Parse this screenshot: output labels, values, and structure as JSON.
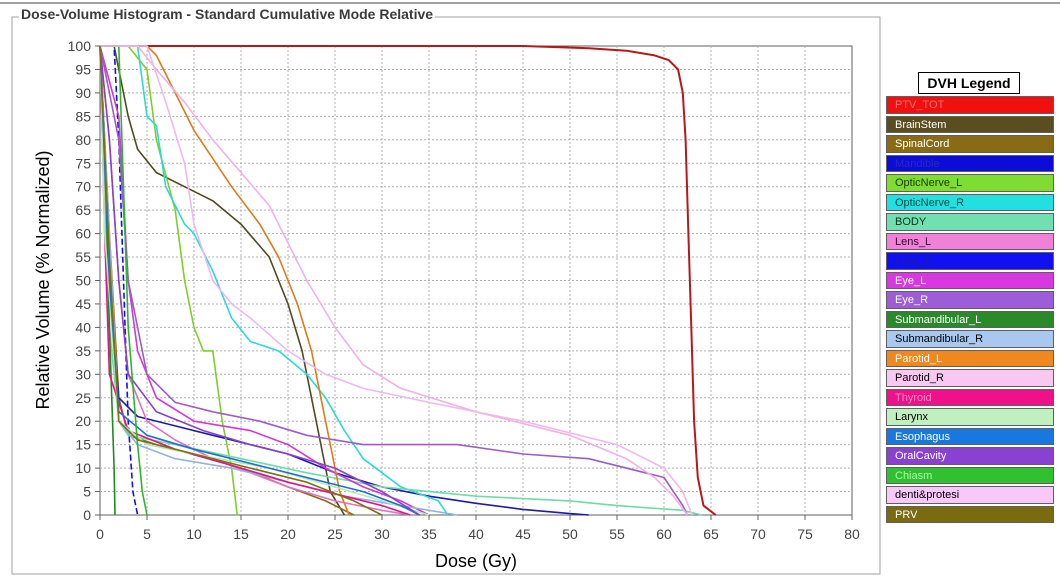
{
  "panel_title": "Dose-Volume Histogram - Standard Cumulative Mode Relative",
  "legend_title": "DVH Legend",
  "chart_data": {
    "type": "line",
    "title": "Dose-Volume Histogram - Standard Cumulative Mode Relative",
    "xlabel": "Dose (Gy)",
    "ylabel": "Relative Volume (% Normalized)",
    "xlim": [
      0,
      80
    ],
    "ylim": [
      0,
      100
    ],
    "xticks": [
      0,
      5,
      10,
      15,
      20,
      25,
      30,
      35,
      40,
      45,
      50,
      55,
      60,
      65,
      70,
      75,
      80
    ],
    "yticks": [
      0,
      5,
      10,
      15,
      20,
      25,
      30,
      35,
      40,
      45,
      50,
      55,
      60,
      65,
      70,
      75,
      80,
      85,
      90,
      95,
      100
    ],
    "grid": true,
    "legend_position": "right",
    "series": [
      {
        "name": "PTV_TOT",
        "color": "#b81818",
        "legend_color": "#f01010",
        "label_color": "#f07070",
        "points": [
          [
            0,
            100
          ],
          [
            30,
            100
          ],
          [
            45,
            100
          ],
          [
            52,
            99.5
          ],
          [
            56,
            99
          ],
          [
            59,
            98
          ],
          [
            60.5,
            97
          ],
          [
            61.5,
            95
          ],
          [
            62,
            90
          ],
          [
            62.3,
            80
          ],
          [
            62.6,
            60
          ],
          [
            62.9,
            40
          ],
          [
            63.2,
            20
          ],
          [
            63.6,
            8
          ],
          [
            64.2,
            2
          ],
          [
            65.5,
            0
          ]
        ]
      },
      {
        "name": "BrainStem",
        "color": "#4f4a20",
        "legend_color": "#5a4e20",
        "label_color": "#ffffff",
        "points": [
          [
            0,
            100
          ],
          [
            1.5,
            100
          ],
          [
            2,
            95
          ],
          [
            3,
            85
          ],
          [
            4,
            78
          ],
          [
            6,
            73
          ],
          [
            9,
            70
          ],
          [
            12,
            67
          ],
          [
            15,
            62
          ],
          [
            18,
            55
          ],
          [
            20,
            45
          ],
          [
            21.5,
            35
          ],
          [
            22.5,
            25
          ],
          [
            23.5,
            15
          ],
          [
            24.5,
            5
          ],
          [
            26,
            0
          ]
        ]
      },
      {
        "name": "SpinalCord",
        "color": "#8a6b15",
        "legend_color": "#8a6b15",
        "label_color": "#ffffff",
        "points": [
          [
            0,
            100
          ],
          [
            1,
            60
          ],
          [
            2,
            25
          ],
          [
            3,
            17
          ],
          [
            6,
            15
          ],
          [
            10,
            13
          ],
          [
            15,
            10
          ],
          [
            20,
            6
          ],
          [
            24,
            3
          ],
          [
            27,
            0
          ]
        ]
      },
      {
        "name": "Mandible",
        "color": "#1c1ca8",
        "legend_color": "#0c0cd8",
        "label_color": "#2a2ac0",
        "points": [
          [
            0,
            100
          ],
          [
            1,
            50
          ],
          [
            2,
            25
          ],
          [
            4,
            21
          ],
          [
            8,
            19
          ],
          [
            12,
            17
          ],
          [
            16,
            15
          ],
          [
            20,
            13
          ],
          [
            25,
            9
          ],
          [
            30,
            6
          ],
          [
            35,
            4
          ],
          [
            40,
            2.5
          ],
          [
            45,
            1.2
          ],
          [
            50,
            0.3
          ],
          [
            52,
            0
          ]
        ]
      },
      {
        "name": "OpticNerve_L",
        "color": "#7ecf2a",
        "legend_color": "#7edd30",
        "label_color": "#1e3a00",
        "points": [
          [
            0,
            100
          ],
          [
            3,
            100
          ],
          [
            5,
            95
          ],
          [
            6,
            80
          ],
          [
            8,
            65
          ],
          [
            9,
            50
          ],
          [
            10,
            40
          ],
          [
            11,
            35
          ],
          [
            12,
            35
          ],
          [
            13,
            20
          ],
          [
            14,
            10
          ],
          [
            14.6,
            0
          ]
        ]
      },
      {
        "name": "OpticNerve_R",
        "color": "#2cd8d8",
        "legend_color": "#22e0e0",
        "label_color": "#004b4b",
        "points": [
          [
            0,
            100
          ],
          [
            4,
            100
          ],
          [
            5,
            85
          ],
          [
            6,
            83
          ],
          [
            7,
            70
          ],
          [
            9,
            62
          ],
          [
            10,
            60
          ],
          [
            12,
            52
          ],
          [
            14,
            42
          ],
          [
            16,
            37
          ],
          [
            19,
            35
          ],
          [
            22,
            30
          ],
          [
            24,
            25
          ],
          [
            26,
            18
          ],
          [
            28,
            12
          ],
          [
            32,
            6
          ],
          [
            36,
            3
          ],
          [
            37,
            0
          ]
        ]
      },
      {
        "name": "BODY",
        "color": "#6edba8",
        "legend_color": "#70e0b0",
        "label_color": "#003020",
        "points": [
          [
            0,
            100
          ],
          [
            0.5,
            70
          ],
          [
            1,
            40
          ],
          [
            2,
            20
          ],
          [
            3,
            17
          ],
          [
            8,
            15
          ],
          [
            15,
            12
          ],
          [
            22,
            9
          ],
          [
            30,
            6
          ],
          [
            40,
            4
          ],
          [
            50,
            3
          ],
          [
            55,
            2
          ],
          [
            62,
            1
          ],
          [
            64,
            0
          ]
        ]
      },
      {
        "name": "Lens_L",
        "color": "#e070c8",
        "legend_color": "#f080d8",
        "label_color": "#3a003a",
        "points": [
          [
            0,
            100
          ],
          [
            1,
            80
          ],
          [
            2,
            50
          ],
          [
            3,
            30
          ],
          [
            5,
            20
          ],
          [
            8,
            16
          ],
          [
            12,
            12
          ],
          [
            16,
            9
          ],
          [
            20,
            6
          ],
          [
            25,
            3
          ],
          [
            30,
            1
          ],
          [
            33,
            0
          ]
        ]
      },
      {
        "name": "Lens_R",
        "color": "#1010e8",
        "legend_color": "#1010f0",
        "label_color": "#1a1ab8",
        "points": [
          [
            0,
            100
          ],
          [
            1.5,
            100
          ],
          [
            2,
            80
          ],
          [
            2.5,
            50
          ],
          [
            3,
            20
          ],
          [
            3.5,
            5
          ],
          [
            4,
            0
          ]
        ]
      },
      {
        "name": "Eye_L",
        "color": "#d038d8",
        "legend_color": "#d838e0",
        "label_color": "#ffffff",
        "points": [
          [
            0,
            100
          ],
          [
            2,
            85
          ],
          [
            3,
            50
          ],
          [
            4,
            35
          ],
          [
            6,
            25
          ],
          [
            10,
            20
          ],
          [
            16,
            18
          ],
          [
            20,
            15
          ],
          [
            24,
            10
          ],
          [
            28,
            6
          ],
          [
            32,
            3
          ],
          [
            35,
            0
          ]
        ]
      },
      {
        "name": "Eye_R",
        "color": "#9d5cc8",
        "legend_color": "#9d5cd8",
        "label_color": "#ffffff",
        "points": [
          [
            0,
            100
          ],
          [
            2,
            80
          ],
          [
            3,
            50
          ],
          [
            5,
            30
          ],
          [
            8,
            24
          ],
          [
            12,
            22
          ],
          [
            17,
            20
          ],
          [
            22,
            17
          ],
          [
            28,
            15
          ],
          [
            38,
            15
          ],
          [
            45,
            13
          ],
          [
            52,
            12
          ],
          [
            60,
            8
          ],
          [
            61,
            5
          ],
          [
            62,
            2
          ],
          [
            62.5,
            0
          ]
        ]
      },
      {
        "name": "Submandibular_L",
        "color": "#1f8a1f",
        "legend_color": "#2a8a2a",
        "label_color": "#ffffff",
        "points": [
          [
            0,
            100
          ],
          [
            0.5,
            80
          ],
          [
            1,
            40
          ],
          [
            1.5,
            10
          ],
          [
            1.6,
            0
          ]
        ]
      },
      {
        "name": "Submandibular_R",
        "color": "#8fb4e0",
        "legend_color": "#a8c8f0",
        "label_color": "#000000",
        "points": [
          [
            0,
            100
          ],
          [
            1,
            60
          ],
          [
            2,
            20
          ],
          [
            4,
            15
          ],
          [
            8,
            12
          ],
          [
            14,
            10
          ],
          [
            20,
            7
          ],
          [
            26,
            4
          ],
          [
            32,
            2
          ],
          [
            38,
            0
          ]
        ]
      },
      {
        "name": "Parotid_L",
        "color": "#e07a18",
        "legend_color": "#f08820",
        "label_color": "#ffffff",
        "points": [
          [
            0,
            100
          ],
          [
            5,
            100
          ],
          [
            6,
            98
          ],
          [
            8,
            90
          ],
          [
            10,
            82
          ],
          [
            14,
            70
          ],
          [
            17,
            62
          ],
          [
            19,
            55
          ],
          [
            21,
            45
          ],
          [
            22.5,
            35
          ],
          [
            23.5,
            25
          ],
          [
            24.5,
            15
          ],
          [
            25.5,
            5
          ],
          [
            26.5,
            0
          ]
        ]
      },
      {
        "name": "Parotid_R",
        "color": "#f2b0e8",
        "legend_color": "#f8c8f0",
        "label_color": "#000000",
        "points": [
          [
            0,
            100
          ],
          [
            4,
            100
          ],
          [
            6,
            95
          ],
          [
            9,
            88
          ],
          [
            12,
            80
          ],
          [
            15,
            73
          ],
          [
            18,
            66
          ],
          [
            20,
            58
          ],
          [
            22,
            50
          ],
          [
            25,
            40
          ],
          [
            28,
            32
          ],
          [
            32,
            27
          ],
          [
            40,
            22
          ],
          [
            50,
            17
          ],
          [
            56,
            12
          ],
          [
            59,
            8
          ],
          [
            61,
            4
          ],
          [
            62.5,
            0
          ]
        ]
      },
      {
        "name": "Thyroid",
        "color": "#e8108a",
        "legend_color": "#f0108a",
        "label_color": "#ff8ac8",
        "points": [
          [
            0,
            100
          ],
          [
            0.5,
            60
          ],
          [
            1,
            30
          ],
          [
            3,
            18
          ],
          [
            8,
            14
          ],
          [
            15,
            10
          ],
          [
            20,
            7
          ],
          [
            26,
            4
          ],
          [
            30,
            2
          ],
          [
            33,
            0
          ]
        ]
      },
      {
        "name": "Larynx",
        "color": "#b8e8b8",
        "legend_color": "#c0f0c0",
        "label_color": "#000000",
        "points": [
          [
            0,
            100
          ],
          [
            0.5,
            60
          ],
          [
            2,
            20
          ],
          [
            5,
            15
          ],
          [
            10,
            13
          ],
          [
            18,
            10
          ],
          [
            25,
            6
          ],
          [
            30,
            3
          ],
          [
            35,
            0
          ]
        ]
      },
      {
        "name": "Esophagus",
        "color": "#1c70d0",
        "legend_color": "#1878e0",
        "label_color": "#ffffff",
        "points": [
          [
            0,
            100
          ],
          [
            1,
            50
          ],
          [
            2,
            22
          ],
          [
            5,
            17
          ],
          [
            10,
            14
          ],
          [
            16,
            11
          ],
          [
            22,
            8
          ],
          [
            28,
            5
          ],
          [
            32,
            2
          ],
          [
            34,
            0
          ]
        ]
      },
      {
        "name": "OralCavity",
        "color": "#8a40c8",
        "legend_color": "#8a40d0",
        "label_color": "#ffffff",
        "points": [
          [
            0,
            100
          ],
          [
            1,
            80
          ],
          [
            2,
            50
          ],
          [
            3,
            30
          ],
          [
            6,
            22
          ],
          [
            11,
            18
          ],
          [
            16,
            15
          ],
          [
            20,
            13
          ],
          [
            25,
            10
          ],
          [
            30,
            5
          ],
          [
            34,
            0
          ]
        ]
      },
      {
        "name": "Chiasm",
        "color": "#2ab82a",
        "legend_color": "#30c030",
        "label_color": "#a8ffa8",
        "points": [
          [
            0,
            100
          ],
          [
            2,
            100
          ],
          [
            2.5,
            70
          ],
          [
            3,
            40
          ],
          [
            4,
            15
          ],
          [
            4.5,
            5
          ],
          [
            5,
            0
          ]
        ]
      },
      {
        "name": "denti&protesi",
        "color": "#f0b8f0",
        "legend_color": "#f8c8f8",
        "label_color": "#000000",
        "points": [
          [
            0,
            100
          ],
          [
            5,
            100
          ],
          [
            7,
            88
          ],
          [
            9,
            75
          ],
          [
            10,
            62
          ],
          [
            12,
            50
          ],
          [
            14,
            45
          ],
          [
            16,
            42
          ],
          [
            20,
            35
          ],
          [
            24,
            30
          ],
          [
            28,
            27
          ],
          [
            35,
            24
          ],
          [
            45,
            20
          ],
          [
            55,
            15
          ],
          [
            60,
            10
          ],
          [
            62,
            5
          ],
          [
            63,
            0
          ]
        ]
      },
      {
        "name": "PRV",
        "color": "#7d7010",
        "legend_color": "#7a6a10",
        "label_color": "#ffffff",
        "points": [
          [
            0,
            100
          ],
          [
            1,
            55
          ],
          [
            2,
            20
          ],
          [
            4,
            16
          ],
          [
            10,
            13
          ],
          [
            16,
            10
          ],
          [
            22,
            7
          ],
          [
            27,
            3
          ],
          [
            30,
            0
          ]
        ]
      }
    ]
  }
}
